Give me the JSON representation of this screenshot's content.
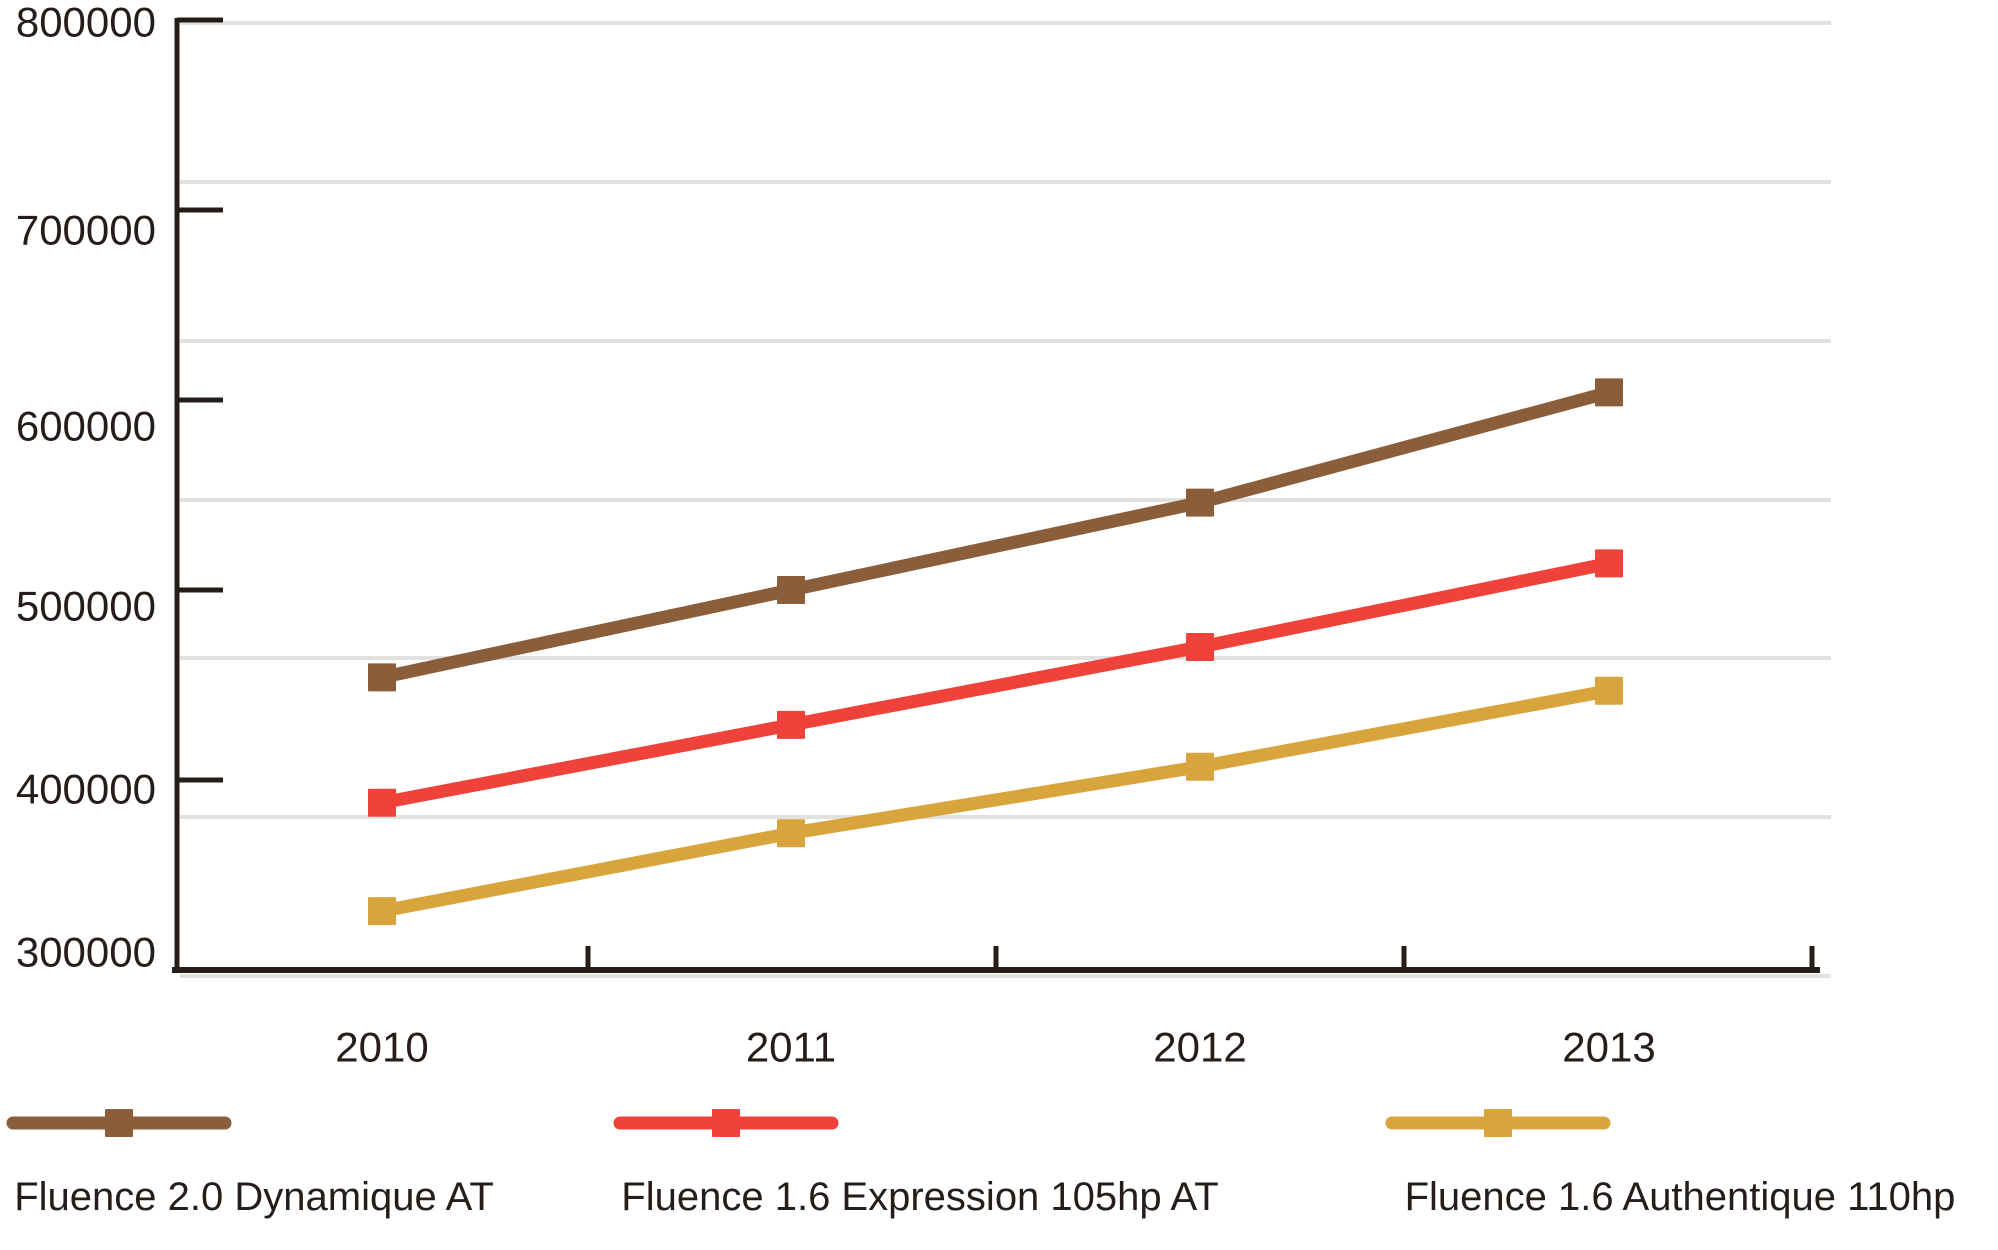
{
  "chart_data": {
    "type": "line",
    "title": "",
    "xlabel": "",
    "ylabel": "",
    "categories": [
      "2010",
      "2011",
      "2012",
      "2013"
    ],
    "series": [
      {
        "name": "Fluence 2.0 Dynamique AT",
        "color": "#8b5e3b",
        "marker": "square",
        "values": [
          454000,
          500000,
          546000,
          604000
        ]
      },
      {
        "name": "Fluence 1.6 Expression 105hp AT",
        "color": "#ee423b",
        "marker": "square",
        "values": [
          388000,
          429000,
          470000,
          514000
        ]
      },
      {
        "name": "Fluence 1.6  Authentique 110hp",
        "color": "#d7a53c",
        "marker": "square",
        "values": [
          331000,
          372000,
          407000,
          447000
        ]
      }
    ],
    "ylim": [
      300000,
      800000
    ],
    "y_tick_step": 100000,
    "y_tick_labels": [
      "800000",
      "700000",
      "600000",
      "500000",
      "400000",
      "300000"
    ],
    "x_tick_labels": [
      "2010",
      "2011",
      "2012",
      "2013"
    ],
    "grid": "horizontal",
    "legend_position": "bottom"
  },
  "colors": {
    "axis": "#241d19",
    "text": "#241d19",
    "gridline": "#e1e1df",
    "background": "#ffffff"
  }
}
